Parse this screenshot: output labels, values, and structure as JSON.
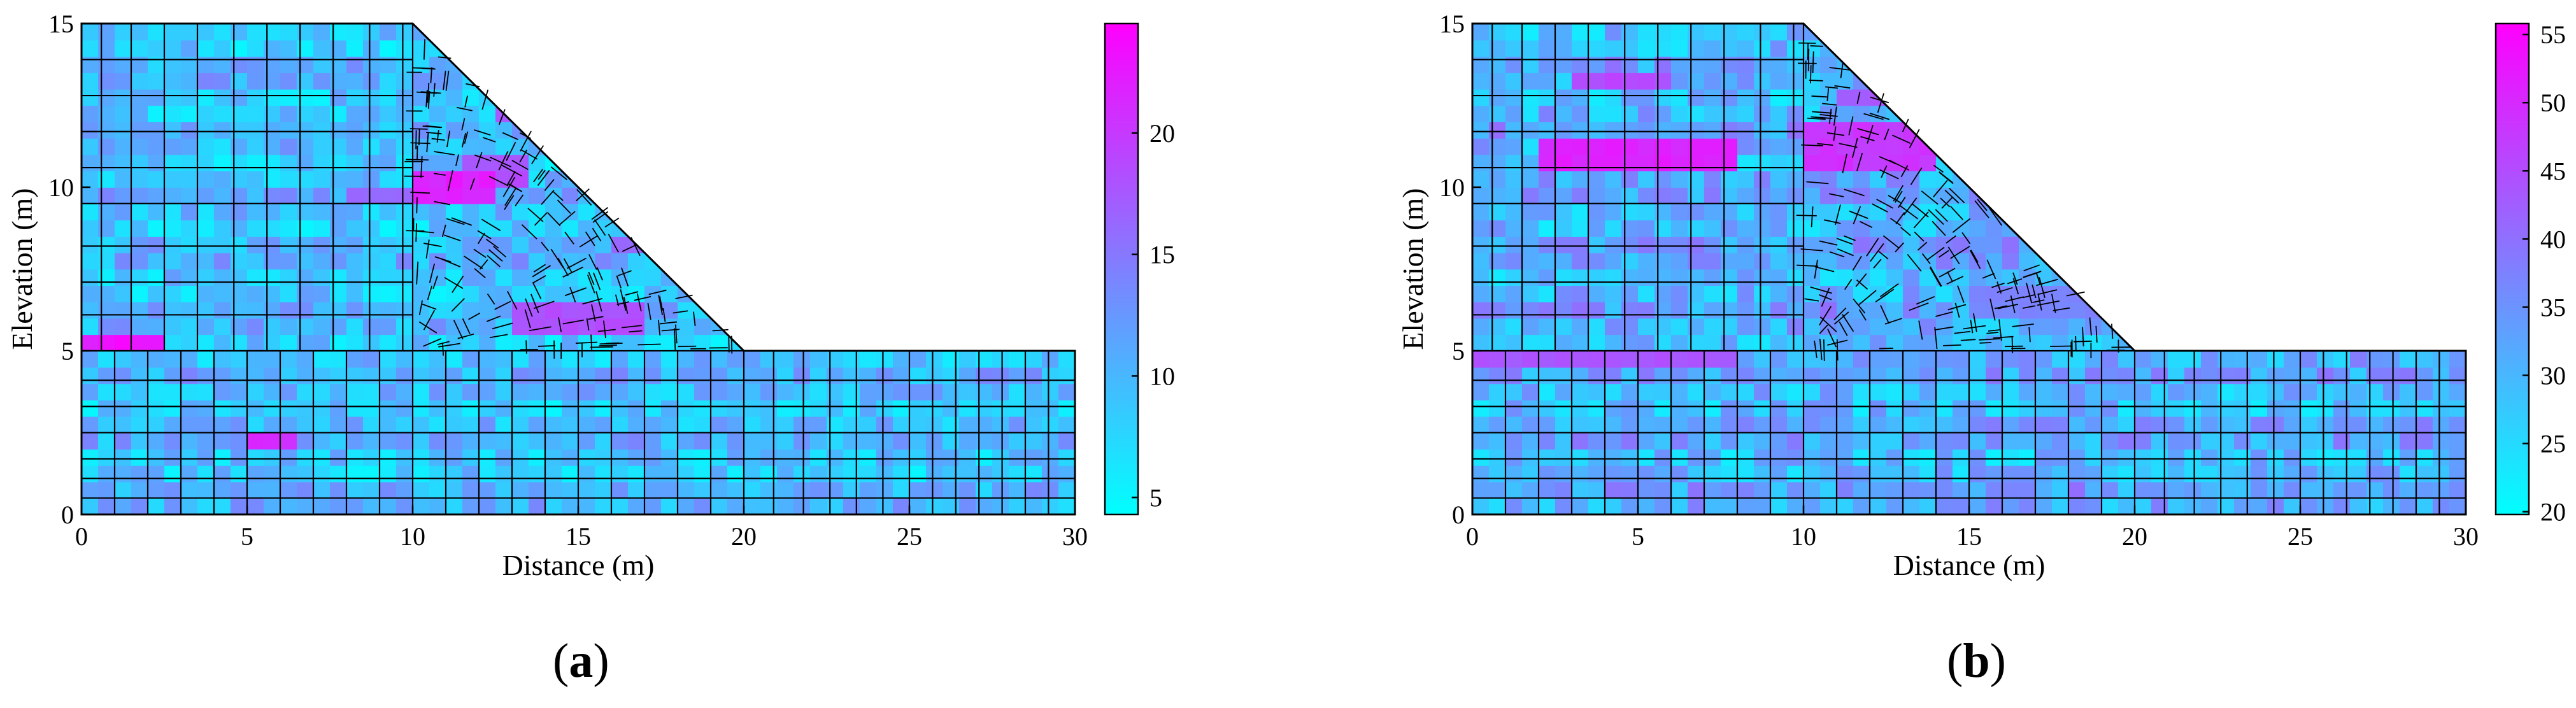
{
  "chart_data": [
    {
      "type": "heatmap",
      "panel_label": "a",
      "xlabel": "Distance (m)",
      "ylabel": "Elevation (m)",
      "xlim": [
        0,
        30
      ],
      "ylim": [
        0,
        15
      ],
      "xticks": [
        0,
        5,
        10,
        15,
        20,
        25,
        30
      ],
      "yticks": [
        0,
        5,
        10,
        15
      ],
      "geometry": {
        "crest": {
          "x": [
            0,
            10
          ],
          "y": 15
        },
        "slope_toe": {
          "x": 20,
          "y": 5
        },
        "foundation_top": 5
      },
      "colorbar": {
        "min": 4.3,
        "max": 24.5,
        "ticks": [
          5,
          10,
          15,
          20
        ],
        "colors": [
          "#00ffff",
          "#ff00ff"
        ]
      },
      "background_range": [
        6,
        13
      ],
      "high_zones": [
        {
          "x": [
            0,
            2.5
          ],
          "y": [
            5,
            5.6
          ],
          "value": 24
        },
        {
          "x": [
            5,
            6.5
          ],
          "y": [
            1.8,
            2.4
          ],
          "value": 22
        },
        {
          "x": [
            10,
            12.5
          ],
          "y": [
            9.3,
            10.3
          ],
          "value": 23
        },
        {
          "x": [
            11.5,
            13.5
          ],
          "y": [
            10,
            11
          ],
          "value": 19
        },
        {
          "x": [
            13,
            17
          ],
          "y": [
            5.7,
            6.7
          ],
          "value": 19
        },
        {
          "x": [
            12.5,
            13.5
          ],
          "y": [
            11.8,
            12.6
          ],
          "value": 18
        },
        {
          "x": [
            8,
            10
          ],
          "y": [
            9.5,
            10.1
          ],
          "value": 17
        },
        {
          "x": [
            16,
            17
          ],
          "y": [
            7.9,
            8.7
          ],
          "value": 17
        }
      ]
    },
    {
      "type": "heatmap",
      "panel_label": "b",
      "xlabel": "Distance (m)",
      "ylabel": "Elevation (m)",
      "xlim": [
        0,
        30
      ],
      "ylim": [
        0,
        15
      ],
      "xticks": [
        0,
        5,
        10,
        15,
        20,
        25,
        30
      ],
      "yticks": [
        0,
        5,
        10,
        15
      ],
      "geometry": {
        "crest": {
          "x": [
            0,
            10
          ],
          "y": 15
        },
        "slope_toe": {
          "x": 20,
          "y": 5
        },
        "foundation_top": 5
      },
      "colorbar": {
        "min": 19.8,
        "max": 55.8,
        "ticks": [
          20,
          25,
          30,
          35,
          40,
          45,
          50,
          55
        ],
        "colors": [
          "#00ffff",
          "#ff00ff"
        ]
      },
      "background_range": [
        24,
        38
      ],
      "high_zones": [
        {
          "x": [
            2,
            8
          ],
          "y": [
            10.6,
            11.6
          ],
          "value": 53
        },
        {
          "x": [
            3,
            6
          ],
          "y": [
            13,
            13.6
          ],
          "value": 47
        },
        {
          "x": [
            10,
            14
          ],
          "y": [
            10.5,
            11.8
          ],
          "value": 50
        },
        {
          "x": [
            0,
            8
          ],
          "y": [
            4.5,
            5
          ],
          "value": 45
        },
        {
          "x": [
            11,
            13
          ],
          "y": [
            12.3,
            13.2
          ],
          "value": 44
        },
        {
          "x": [
            15,
            20
          ],
          "y": [
            6,
            7
          ],
          "value": 38
        }
      ]
    }
  ]
}
